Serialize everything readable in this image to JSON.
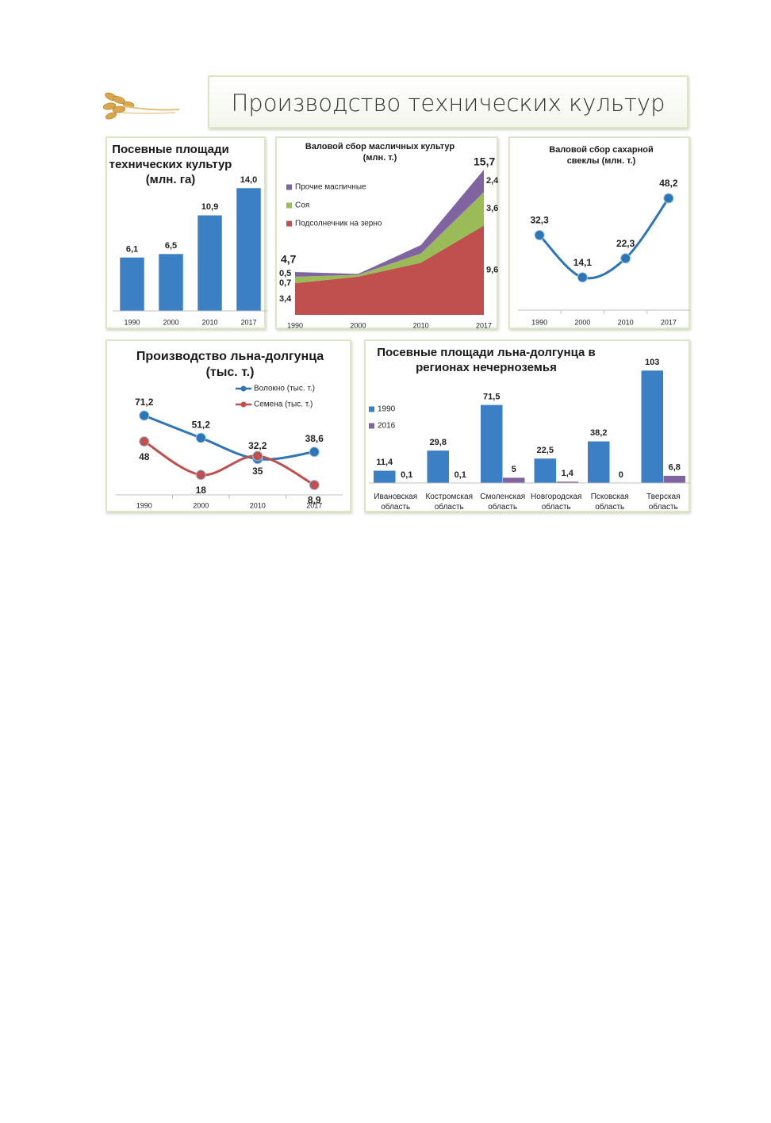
{
  "header": {
    "title": "Производство технических культур"
  },
  "chart_data": [
    {
      "type": "bar",
      "title": "Посевные площади технических культур (млн. га)",
      "categories": [
        "1990",
        "2000",
        "2010",
        "2017"
      ],
      "values": [
        6.1,
        6.5,
        10.9,
        14.0
      ],
      "value_labels": [
        "6,1",
        "6,5",
        "10,9",
        "14,0"
      ],
      "color": "#3b7fc4"
    },
    {
      "type": "area",
      "title": "Валовой сбор масличных культур (млн. т.)",
      "categories": [
        "1990",
        "2000",
        "2010",
        "2017"
      ],
      "series": [
        {
          "name": "Подсолнечник на зерно",
          "color": "#c0504d",
          "values": [
            3.4,
            4.1,
            5.6,
            9.6
          ],
          "value_labels": [
            "3,4",
            null,
            null,
            "9,6"
          ]
        },
        {
          "name": "Соя",
          "color": "#9bbb59",
          "values": [
            0.7,
            0.2,
            1.0,
            3.6
          ],
          "value_labels": [
            "0,7",
            null,
            null,
            "3,6"
          ]
        },
        {
          "name": "Прочие масличные",
          "color": "#8064a2",
          "values": [
            0.5,
            0.1,
            0.9,
            2.4
          ],
          "value_labels": [
            "0,5",
            null,
            null,
            "2,4"
          ]
        }
      ],
      "total_labels": [
        "4,7",
        null,
        null,
        "15,7"
      ]
    },
    {
      "type": "line",
      "title": "Валовой сбор сахарной свеклы (млн. т.)",
      "categories": [
        "1990",
        "2000",
        "2010",
        "2017"
      ],
      "series": [
        {
          "color": "#2e75b6",
          "values": [
            32.3,
            14.1,
            22.3,
            48.2
          ],
          "value_labels": [
            "32,3",
            "14,1",
            "22,3",
            "48,2"
          ]
        }
      ]
    },
    {
      "type": "line",
      "title": "Производство льна-долгунца (тыс. т.)",
      "categories": [
        "1990",
        "2000",
        "2010",
        "2017"
      ],
      "series": [
        {
          "name": "Волокно (тыс. т.)",
          "color": "#2e75b6",
          "values": [
            71.2,
            51.2,
            32.2,
            38.6
          ],
          "value_labels": [
            "71,2",
            "51,2",
            "32,2",
            "38,6"
          ]
        },
        {
          "name": "Семена (тыс. т.)",
          "color": "#c0504d",
          "values": [
            48,
            18,
            35,
            8.9
          ],
          "value_labels": [
            "48",
            "18",
            "35",
            "8,9"
          ]
        }
      ]
    },
    {
      "type": "bar",
      "title": "Посевные площади льна-долгунца в регионах нечерноземья",
      "categories": [
        "Ивановская область",
        "Костромская область",
        "Смоленская область",
        "Новгородская область",
        "Псковская область",
        "Тверская область"
      ],
      "series": [
        {
          "name": "1990",
          "color": "#3b7fc4",
          "values": [
            11.4,
            29.8,
            71.5,
            22.5,
            38.2,
            103
          ],
          "value_labels": [
            "11,4",
            "29,8",
            "71,5",
            "22,5",
            "38,2",
            "103"
          ]
        },
        {
          "name": "2016",
          "color": "#8064a2",
          "values": [
            0.1,
            0.1,
            5,
            1.4,
            0,
            6.8
          ],
          "value_labels": [
            "0,1",
            "0,1",
            "5",
            "1,4",
            "0",
            "6,8"
          ]
        }
      ]
    }
  ]
}
